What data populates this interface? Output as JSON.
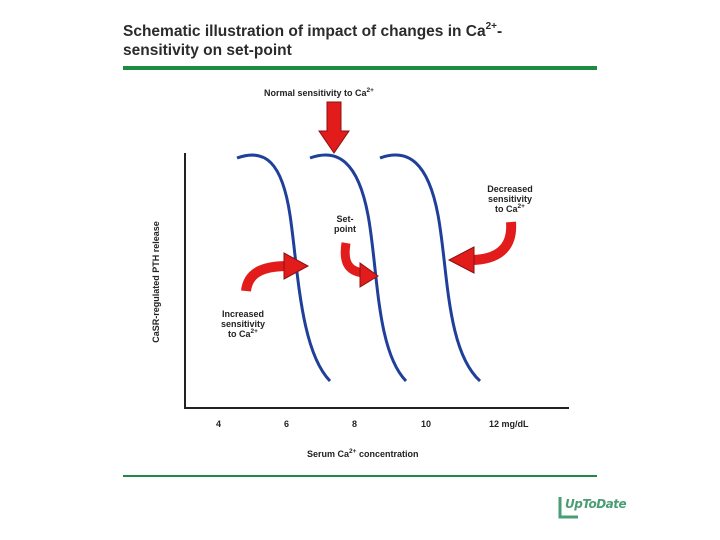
{
  "title": {
    "prefix": "Schematic illustration of impact of changes in Ca",
    "sup": "2+",
    "suffix": "-",
    "line2": "sensitivity on set-point"
  },
  "labels": {
    "normal": {
      "text": "Normal sensitivity to Ca",
      "sup": "2+"
    },
    "setpoint": [
      "Set-",
      "point"
    ],
    "decreased": [
      "Decreased",
      "sensitivity",
      "to Ca"
    ],
    "decreased_sup": "2+",
    "increased": [
      "Increased",
      "sensitivity",
      "to Ca"
    ],
    "increased_sup": "2+"
  },
  "axes": {
    "ylabel": "CaSR-regulated PTH release",
    "xlabel_prefix": "Serum Ca",
    "xlabel_sup": "2+",
    "xlabel_suffix": " concentration",
    "ticks": [
      "4",
      "6",
      "8",
      "10",
      "12 mg/dL"
    ]
  },
  "logo": {
    "text": "UpToDate"
  },
  "colors": {
    "curve": "#1f3f9a",
    "arrow": "#e21b1b",
    "arrow_outline": "#8a1010",
    "rule": "#1f8a44",
    "logo": "#4a9e74"
  }
}
